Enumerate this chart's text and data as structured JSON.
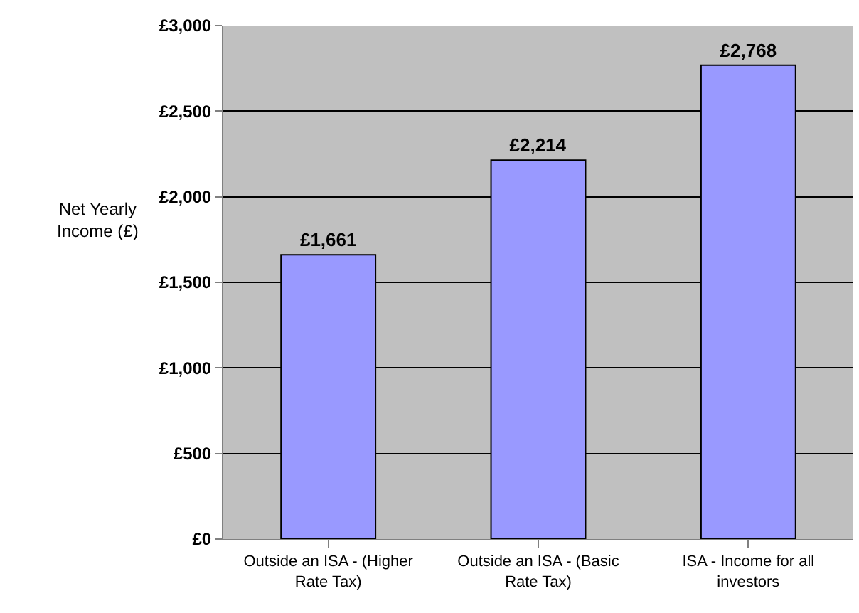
{
  "chart_data": {
    "type": "bar",
    "ylabel": "Net Yearly Income (£)",
    "categories": [
      "Outside an ISA - (Higher Rate Tax)",
      "Outside an ISA - (Basic Rate Tax)",
      "ISA - Income for all investors"
    ],
    "values": [
      1661,
      2214,
      2768
    ],
    "color": "#9999ff",
    "value_labels": [
      "£1,661",
      "£2,214",
      "£2,768"
    ],
    "ylim": [
      0,
      3000
    ],
    "yticks": [
      {
        "value": 0,
        "label": "£0"
      },
      {
        "value": 500,
        "label": "£500"
      },
      {
        "value": 1000,
        "label": "£1,000"
      },
      {
        "value": 1500,
        "label": "£1,500"
      },
      {
        "value": 2000,
        "label": "£2,000"
      },
      {
        "value": 2500,
        "label": "£2,500"
      },
      {
        "value": 3000,
        "label": "£3,000"
      }
    ],
    "grid": "y",
    "legend": false
  }
}
